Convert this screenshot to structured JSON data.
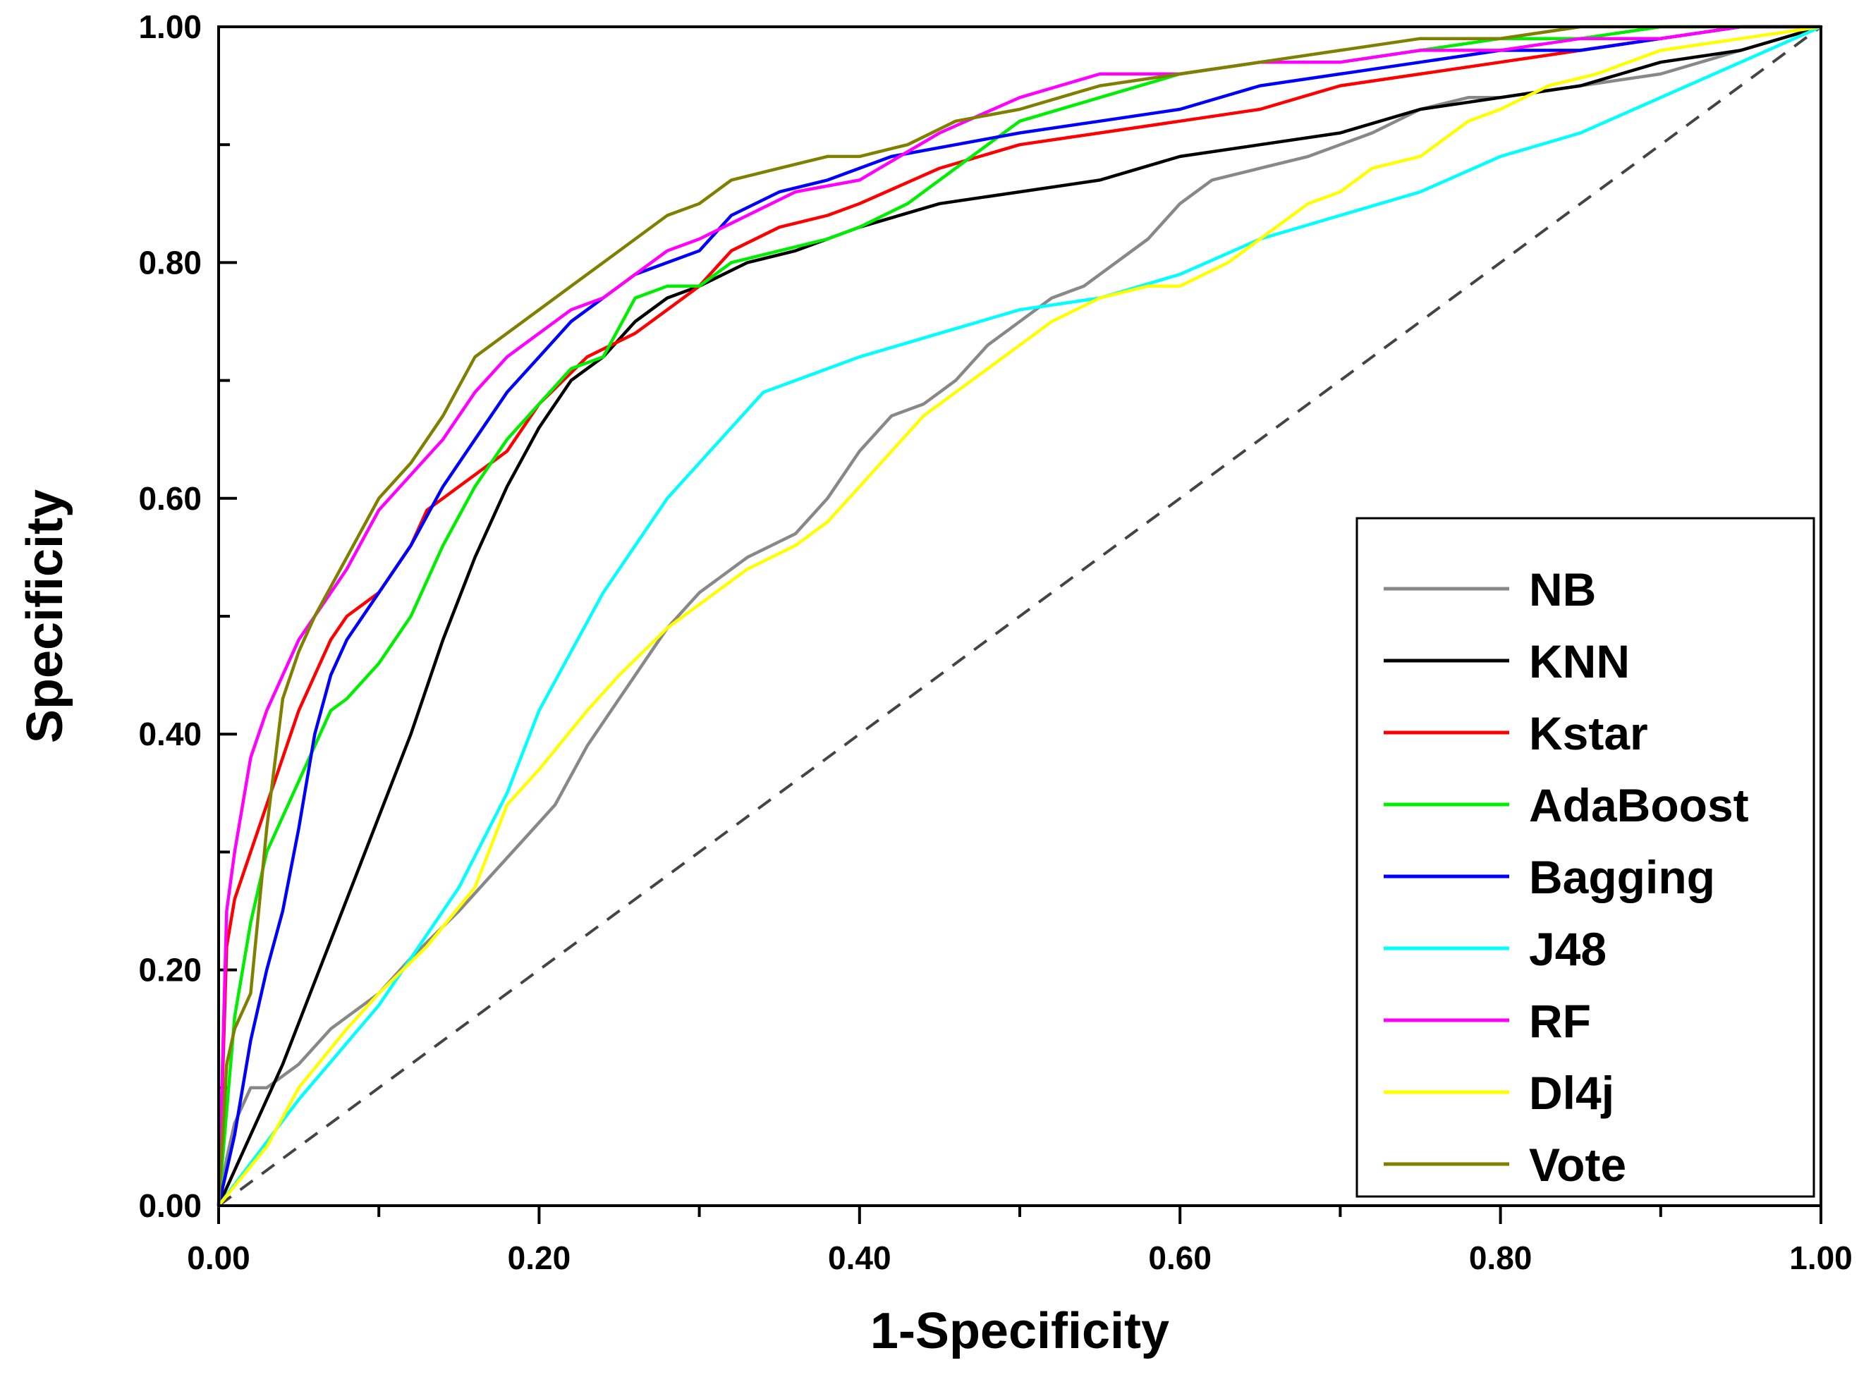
{
  "chart_data": {
    "type": "line",
    "title": "",
    "xlabel": "1-Specificity",
    "ylabel": "Specificity",
    "xlim": [
      0,
      1
    ],
    "ylim": [
      0,
      1
    ],
    "x_ticks": [
      "0.00",
      "0.20",
      "0.40",
      "0.60",
      "0.80",
      "1.00"
    ],
    "y_ticks": [
      "0.00",
      "0.20",
      "0.40",
      "0.60",
      "0.80",
      "1.00"
    ],
    "grid": false,
    "legend_position": "bottom-right",
    "reference_line": {
      "name": "chance",
      "style": "dashed",
      "color": "#444444",
      "x": [
        0,
        1
      ],
      "y": [
        0,
        1
      ]
    },
    "series": [
      {
        "name": "NB",
        "color": "#888888",
        "x": [
          0,
          0.005,
          0.01,
          0.02,
          0.03,
          0.05,
          0.07,
          0.1,
          0.12,
          0.15,
          0.17,
          0.19,
          0.21,
          0.23,
          0.25,
          0.28,
          0.3,
          0.33,
          0.36,
          0.38,
          0.4,
          0.42,
          0.44,
          0.46,
          0.48,
          0.5,
          0.52,
          0.54,
          0.56,
          0.58,
          0.6,
          0.62,
          0.65,
          0.68,
          0.7,
          0.72,
          0.75,
          0.78,
          0.8,
          0.85,
          0.9,
          0.95,
          1.0
        ],
        "y": [
          0,
          0.04,
          0.07,
          0.1,
          0.1,
          0.12,
          0.15,
          0.18,
          0.21,
          0.25,
          0.28,
          0.31,
          0.34,
          0.39,
          0.43,
          0.49,
          0.52,
          0.55,
          0.57,
          0.6,
          0.64,
          0.67,
          0.68,
          0.7,
          0.73,
          0.75,
          0.77,
          0.78,
          0.8,
          0.82,
          0.85,
          0.87,
          0.88,
          0.89,
          0.9,
          0.91,
          0.93,
          0.94,
          0.94,
          0.95,
          0.96,
          0.98,
          1.0
        ]
      },
      {
        "name": "KNN",
        "color": "#000000",
        "x": [
          0,
          0.02,
          0.04,
          0.06,
          0.08,
          0.1,
          0.12,
          0.14,
          0.16,
          0.18,
          0.2,
          0.22,
          0.24,
          0.26,
          0.28,
          0.3,
          0.33,
          0.36,
          0.4,
          0.45,
          0.5,
          0.55,
          0.6,
          0.65,
          0.7,
          0.75,
          0.8,
          0.85,
          0.9,
          0.95,
          1.0
        ],
        "y": [
          0,
          0.06,
          0.12,
          0.19,
          0.26,
          0.33,
          0.4,
          0.48,
          0.55,
          0.61,
          0.66,
          0.7,
          0.72,
          0.75,
          0.77,
          0.78,
          0.8,
          0.81,
          0.83,
          0.85,
          0.86,
          0.87,
          0.89,
          0.9,
          0.91,
          0.93,
          0.94,
          0.95,
          0.97,
          0.98,
          1.0
        ]
      },
      {
        "name": "Kstar",
        "color": "#ff0000",
        "x": [
          0,
          0.005,
          0.01,
          0.02,
          0.03,
          0.04,
          0.05,
          0.06,
          0.07,
          0.08,
          0.1,
          0.12,
          0.13,
          0.15,
          0.18,
          0.2,
          0.23,
          0.26,
          0.28,
          0.3,
          0.32,
          0.35,
          0.38,
          0.4,
          0.45,
          0.5,
          0.55,
          0.6,
          0.65,
          0.7,
          0.75,
          0.8,
          0.85,
          0.9,
          0.95,
          1.0
        ],
        "y": [
          0,
          0.22,
          0.26,
          0.3,
          0.34,
          0.38,
          0.42,
          0.45,
          0.48,
          0.5,
          0.52,
          0.56,
          0.59,
          0.61,
          0.64,
          0.68,
          0.72,
          0.74,
          0.76,
          0.78,
          0.81,
          0.83,
          0.84,
          0.85,
          0.88,
          0.9,
          0.91,
          0.92,
          0.93,
          0.95,
          0.96,
          0.97,
          0.98,
          0.99,
          1.0,
          1.0
        ]
      },
      {
        "name": "AdaBoost",
        "color": "#00ee00",
        "x": [
          0,
          0.01,
          0.02,
          0.03,
          0.04,
          0.05,
          0.06,
          0.07,
          0.08,
          0.1,
          0.12,
          0.14,
          0.16,
          0.18,
          0.2,
          0.22,
          0.24,
          0.26,
          0.28,
          0.3,
          0.32,
          0.35,
          0.38,
          0.4,
          0.43,
          0.46,
          0.5,
          0.55,
          0.6,
          0.65,
          0.7,
          0.75,
          0.8,
          0.85,
          0.9,
          0.95,
          1.0
        ],
        "y": [
          0,
          0.16,
          0.24,
          0.3,
          0.33,
          0.36,
          0.39,
          0.42,
          0.43,
          0.46,
          0.5,
          0.56,
          0.61,
          0.65,
          0.68,
          0.71,
          0.72,
          0.77,
          0.78,
          0.78,
          0.8,
          0.81,
          0.82,
          0.83,
          0.85,
          0.88,
          0.92,
          0.94,
          0.96,
          0.97,
          0.97,
          0.98,
          0.99,
          0.99,
          1.0,
          1.0,
          1.0
        ]
      },
      {
        "name": "Bagging",
        "color": "#0000ff",
        "x": [
          0,
          0.01,
          0.02,
          0.03,
          0.04,
          0.05,
          0.06,
          0.07,
          0.08,
          0.1,
          0.12,
          0.14,
          0.16,
          0.18,
          0.2,
          0.22,
          0.24,
          0.26,
          0.28,
          0.3,
          0.32,
          0.35,
          0.38,
          0.4,
          0.42,
          0.46,
          0.5,
          0.55,
          0.6,
          0.65,
          0.7,
          0.75,
          0.8,
          0.85,
          0.9,
          0.95,
          1.0
        ],
        "y": [
          0,
          0.06,
          0.14,
          0.2,
          0.25,
          0.32,
          0.4,
          0.45,
          0.48,
          0.52,
          0.56,
          0.61,
          0.65,
          0.69,
          0.72,
          0.75,
          0.77,
          0.79,
          0.8,
          0.81,
          0.84,
          0.86,
          0.87,
          0.88,
          0.89,
          0.9,
          0.91,
          0.92,
          0.93,
          0.95,
          0.96,
          0.97,
          0.98,
          0.98,
          0.99,
          1.0,
          1.0
        ]
      },
      {
        "name": "J48",
        "color": "#00ffff",
        "x": [
          0,
          0.05,
          0.1,
          0.15,
          0.18,
          0.2,
          0.22,
          0.24,
          0.26,
          0.28,
          0.3,
          0.32,
          0.34,
          0.36,
          0.4,
          0.45,
          0.5,
          0.55,
          0.6,
          0.65,
          0.7,
          0.75,
          0.8,
          0.85,
          0.9,
          0.95,
          1.0
        ],
        "y": [
          0,
          0.09,
          0.17,
          0.27,
          0.35,
          0.42,
          0.47,
          0.52,
          0.56,
          0.6,
          0.63,
          0.66,
          0.69,
          0.7,
          0.72,
          0.74,
          0.76,
          0.77,
          0.79,
          0.82,
          0.84,
          0.86,
          0.89,
          0.91,
          0.94,
          0.97,
          1.0
        ]
      },
      {
        "name": "RF",
        "color": "#ff00ff",
        "x": [
          0,
          0.005,
          0.01,
          0.02,
          0.03,
          0.04,
          0.05,
          0.06,
          0.08,
          0.1,
          0.12,
          0.14,
          0.16,
          0.18,
          0.2,
          0.22,
          0.24,
          0.26,
          0.28,
          0.3,
          0.33,
          0.36,
          0.4,
          0.45,
          0.5,
          0.55,
          0.6,
          0.65,
          0.7,
          0.75,
          0.8,
          0.85,
          0.9,
          0.95,
          1.0
        ],
        "y": [
          0,
          0.25,
          0.3,
          0.38,
          0.42,
          0.45,
          0.48,
          0.5,
          0.54,
          0.59,
          0.62,
          0.65,
          0.69,
          0.72,
          0.74,
          0.76,
          0.77,
          0.79,
          0.81,
          0.82,
          0.84,
          0.86,
          0.87,
          0.91,
          0.94,
          0.96,
          0.96,
          0.97,
          0.97,
          0.98,
          0.98,
          0.99,
          0.99,
          1.0,
          1.0
        ]
      },
      {
        "name": "Dl4j",
        "color": "#ffff00",
        "x": [
          0,
          0.03,
          0.05,
          0.08,
          0.1,
          0.13,
          0.16,
          0.18,
          0.2,
          0.23,
          0.25,
          0.28,
          0.3,
          0.33,
          0.36,
          0.38,
          0.4,
          0.42,
          0.44,
          0.46,
          0.48,
          0.5,
          0.52,
          0.55,
          0.58,
          0.6,
          0.63,
          0.66,
          0.68,
          0.7,
          0.72,
          0.75,
          0.78,
          0.8,
          0.83,
          0.86,
          0.9,
          0.95,
          1.0
        ],
        "y": [
          0,
          0.05,
          0.1,
          0.15,
          0.18,
          0.22,
          0.27,
          0.34,
          0.37,
          0.42,
          0.45,
          0.49,
          0.51,
          0.54,
          0.56,
          0.58,
          0.61,
          0.64,
          0.67,
          0.69,
          0.71,
          0.73,
          0.75,
          0.77,
          0.78,
          0.78,
          0.8,
          0.83,
          0.85,
          0.86,
          0.88,
          0.89,
          0.92,
          0.93,
          0.95,
          0.96,
          0.98,
          0.99,
          1.0
        ]
      },
      {
        "name": "Vote",
        "color": "#808000",
        "x": [
          0,
          0.005,
          0.01,
          0.02,
          0.025,
          0.03,
          0.04,
          0.05,
          0.06,
          0.08,
          0.1,
          0.12,
          0.14,
          0.16,
          0.18,
          0.2,
          0.22,
          0.24,
          0.26,
          0.28,
          0.3,
          0.32,
          0.35,
          0.38,
          0.4,
          0.43,
          0.46,
          0.5,
          0.55,
          0.6,
          0.65,
          0.7,
          0.75,
          0.8,
          0.85,
          0.9,
          0.95,
          1.0
        ],
        "y": [
          0,
          0.12,
          0.15,
          0.18,
          0.25,
          0.32,
          0.43,
          0.47,
          0.5,
          0.55,
          0.6,
          0.63,
          0.67,
          0.72,
          0.74,
          0.76,
          0.78,
          0.8,
          0.82,
          0.84,
          0.85,
          0.87,
          0.88,
          0.89,
          0.89,
          0.9,
          0.92,
          0.93,
          0.95,
          0.96,
          0.97,
          0.98,
          0.99,
          0.99,
          1.0,
          1.0,
          1.0,
          1.0
        ]
      }
    ]
  }
}
